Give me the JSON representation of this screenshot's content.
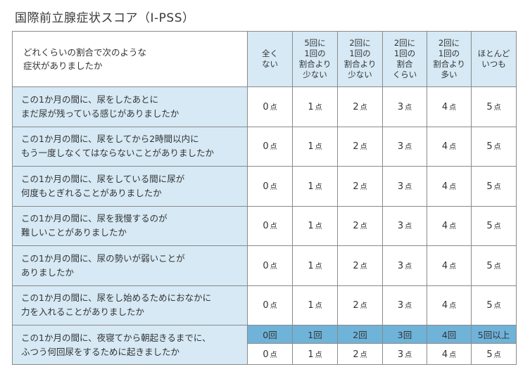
{
  "title": "国際前立腺症状スコア（I-PSS）",
  "header": {
    "corner": "どれくらいの割合で次のような\n症状がありましたか",
    "columns": [
      "全く\nない",
      "5回に\n1回の\n割合より\n少ない",
      "2回に\n1回の\n割合より\n少ない",
      "2回に\n1回の\n割合\nくらい",
      "2回に\n1回の\n割合より\n多い",
      "ほとんど\nいつも"
    ]
  },
  "unit": "点",
  "scores": [
    "0",
    "1",
    "2",
    "3",
    "4",
    "5"
  ],
  "questions": [
    "この1か月の間に、尿をしたあとに\nまだ尿が残っている感じがありましたか",
    "この1か月の間に、尿をしてから2時間以内に\nもう一度しなくてはならないことがありましたか",
    "この1か月の間に、尿をしている間に尿が\n何度もとぎれることがありましたか",
    "この1か月の間に、尿を我慢するのが\n難しいことがありましたか",
    "この1か月の間に、尿の勢いが弱いことが\nありましたか",
    "この1か月の間に、尿をし始めるためにおなかに\n力を入れることがありましたか"
  ],
  "last_question": {
    "text": "この1か月の間に、夜寝てから朝起きるまでに、\nふつう何回尿をするために起きましたか",
    "counts": [
      "0回",
      "1回",
      "2回",
      "3回",
      "4回",
      "5回以上"
    ]
  }
}
